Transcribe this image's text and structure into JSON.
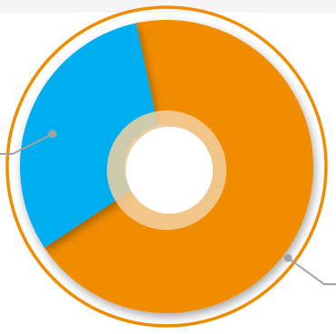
{
  "chart_data": {
    "type": "pie",
    "variant": "donut",
    "title": "",
    "slices": [
      {
        "label": "",
        "value": 69,
        "color": "#f08c00"
      },
      {
        "label": "",
        "value": 31,
        "color": "#03aeef"
      }
    ],
    "legend": "none",
    "data_labels": "none"
  },
  "colors": {
    "outer_ring": "#f08c00",
    "center_glow": "#f2cfa0",
    "leader_line": "#a3a3a3",
    "top_band": "#f5f5f5"
  }
}
